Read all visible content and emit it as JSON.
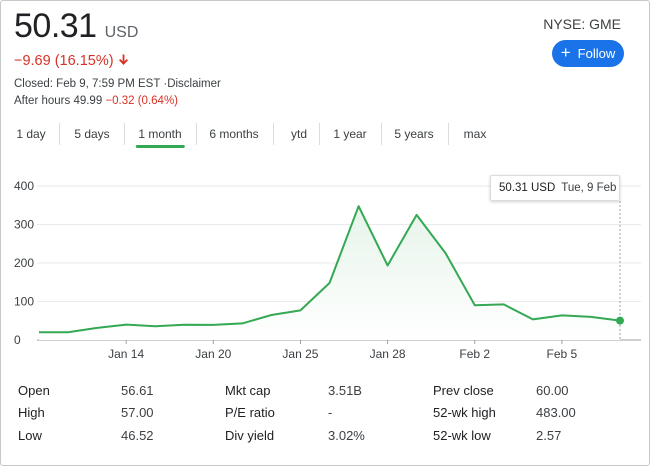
{
  "quote": {
    "price": "50.31",
    "currency": "USD",
    "change": "−9.69 (16.15%)",
    "change_icon": "arrow-down-icon",
    "closed": "Closed: Feb 9, 7:59 PM EST ·Disclaimer",
    "after_hours_label": "After hours 49.99",
    "after_hours_change": "−0.32 (0.64%)",
    "ticker": "NYSE: GME",
    "follow_label": "Follow",
    "down_color": "#d93025",
    "accent_color": "#1a73e8"
  },
  "tabs": [
    {
      "label": "1 day"
    },
    {
      "label": "5 days"
    },
    {
      "label": "1 month",
      "active": true
    },
    {
      "label": "6 months"
    },
    {
      "label": "ytd"
    },
    {
      "label": "1 year"
    },
    {
      "label": "5 years"
    },
    {
      "label": "max"
    }
  ],
  "tooltip": {
    "value": "50.31 USD",
    "date": "Tue, 9 Feb"
  },
  "chart_data": {
    "type": "area",
    "x": [
      "Jan 11",
      "Jan 12",
      "Jan 13",
      "Jan 14",
      "Jan 15",
      "Jan 19",
      "Jan 20",
      "Jan 21",
      "Jan 22",
      "Jan 25",
      "Jan 26",
      "Jan 27",
      "Jan 28",
      "Jan 29",
      "Jan 1 Feb",
      "Feb 2",
      "Feb 3",
      "Feb 4",
      "Feb 5",
      "Feb 8",
      "Feb 9"
    ],
    "values": [
      19.9,
      19.95,
      31.4,
      39.9,
      35.5,
      39.4,
      39.1,
      43.0,
      65.0,
      76.8,
      147.98,
      347.51,
      193.6,
      325.0,
      225.0,
      90.0,
      92.41,
      53.5,
      63.77,
      60.0,
      50.31
    ],
    "xticks": [
      "Jan 14",
      "Jan 20",
      "Jan 25",
      "Jan 28",
      "Feb 2",
      "Feb 5"
    ],
    "yticks": [
      "0",
      "100",
      "200",
      "300",
      "400"
    ],
    "ylim": [
      0,
      400
    ],
    "line_color": "#34a853",
    "grid": true
  },
  "stats": [
    {
      "label": "Open",
      "value": "56.61"
    },
    {
      "label": "High",
      "value": "57.00"
    },
    {
      "label": "Low",
      "value": "46.52"
    },
    {
      "label": "Mkt cap",
      "value": "3.51B"
    },
    {
      "label": "P/E ratio",
      "value": "-"
    },
    {
      "label": "Div yield",
      "value": "3.02%"
    },
    {
      "label": "Prev close",
      "value": "60.00"
    },
    {
      "label": "52-wk high",
      "value": "483.00"
    },
    {
      "label": "52-wk low",
      "value": "2.57"
    }
  ]
}
